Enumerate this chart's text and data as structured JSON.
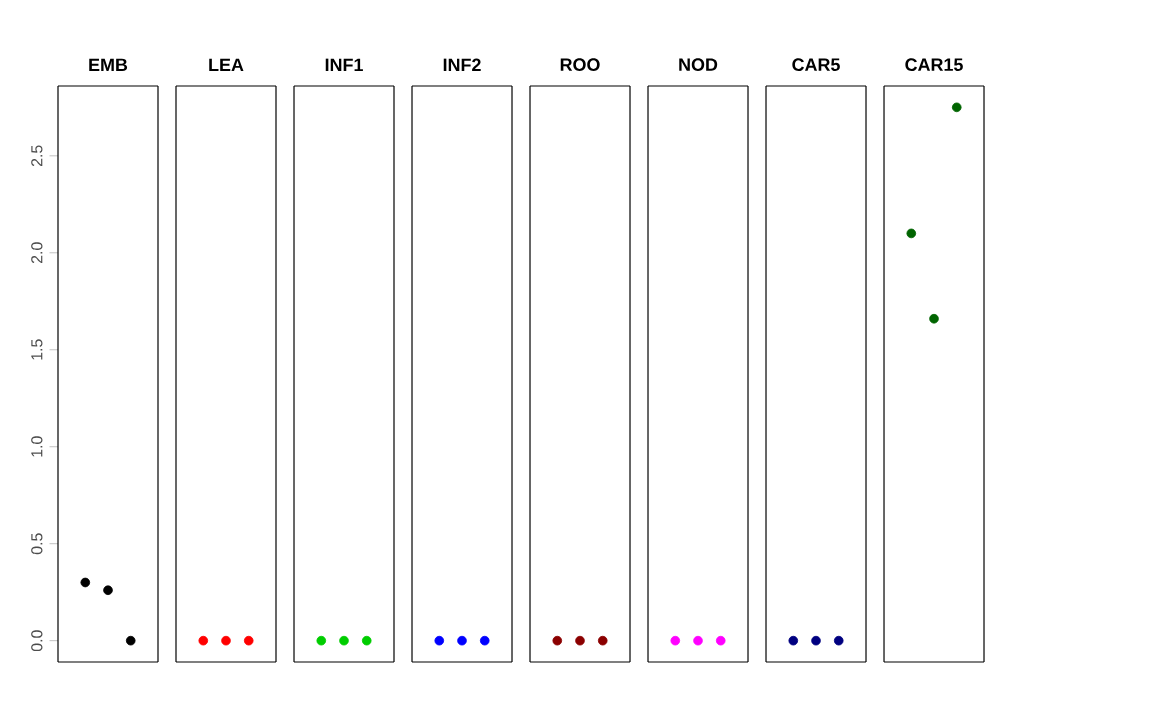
{
  "chart_data": {
    "type": "scatter",
    "categories": [
      "EMB",
      "LEA",
      "INF1",
      "INF2",
      "ROO",
      "NOD",
      "CAR5",
      "CAR15"
    ],
    "ylim": [
      -0.11,
      2.86
    ],
    "yticks": [
      {
        "value": 0,
        "label": "0.0"
      },
      {
        "value": 0.5,
        "label": "0.5"
      },
      {
        "value": 1,
        "label": "1.0"
      },
      {
        "value": 1.5,
        "label": "1.5"
      },
      {
        "value": 2,
        "label": "2.0"
      },
      {
        "value": 2.5,
        "label": "2.5"
      }
    ],
    "series": [
      {
        "colors": [
          "#000000",
          "#ff0000",
          "#00cd00",
          "#0000ff",
          "#8b0000",
          "#ff00ff",
          "#000080",
          "#006400"
        ],
        "values": [
          0.3,
          0,
          0,
          0,
          0,
          0,
          0,
          2.1
        ]
      },
      {
        "colors": [
          "#000000",
          "#ff0000",
          "#00cd00",
          "#0000ff",
          "#8b0000",
          "#ff00ff",
          "#000080",
          "#006400"
        ],
        "values": [
          0.26,
          0,
          0,
          0,
          0,
          0,
          0,
          1.66
        ]
      },
      {
        "colors": [
          "#000000",
          "#ff0000",
          "#00cd00",
          "#0000ff",
          "#8b0000",
          "#ff00ff",
          "#000080",
          "#006400"
        ],
        "values": [
          0,
          0,
          0,
          0,
          0,
          0,
          0,
          2.75
        ]
      }
    ]
  }
}
